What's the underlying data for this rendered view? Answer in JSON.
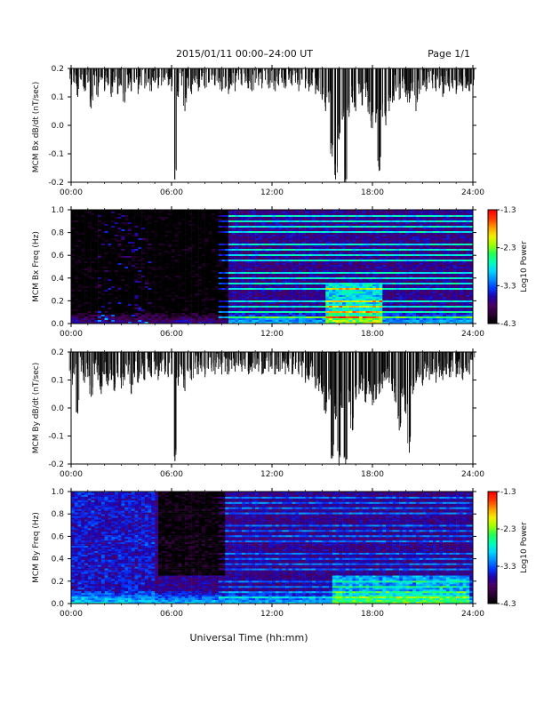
{
  "header": {
    "title": "2015/01/11  00:00–24:00 UT",
    "page": "Page 1/1"
  },
  "footer": {
    "xlabel": "Universal Time (hh:mm)"
  },
  "chart_data": [
    {
      "id": "panel-bx-dbdt",
      "type": "line",
      "ylabel": "MCM Bx dB/dt (nT/sec)",
      "xlim": [
        0,
        24
      ],
      "ylim": [
        -0.2,
        0.2
      ],
      "xtick_labels": [
        "00:00",
        "06:00",
        "12:00",
        "18:00",
        "24:00"
      ],
      "ytick_labels": [
        "0.2",
        "0.1",
        "0.0",
        "-0.1",
        "-0.2"
      ],
      "x_ticks_hours": [
        0,
        6,
        12,
        18,
        24
      ],
      "y_ticks": [
        0.2,
        0.1,
        0.0,
        -0.1,
        -0.2
      ],
      "series": [
        {
          "x": [
            0,
            0.2,
            0.4,
            0.6,
            0.8,
            1.0,
            1.2,
            1.4,
            1.6,
            1.8,
            2.0,
            2.2,
            2.4,
            2.6,
            2.8,
            3.0,
            3.2,
            3.4,
            3.6,
            3.8,
            4.0,
            4.2,
            4.4,
            4.6,
            4.8,
            5.0,
            5.2,
            5.4,
            5.6,
            5.8,
            6.0,
            6.2,
            6.4,
            6.6,
            6.8,
            7.0,
            7.2,
            7.4,
            7.6,
            7.8,
            8.0,
            8.2,
            8.4,
            8.6,
            8.8,
            9.0,
            9.2,
            9.4,
            9.6,
            9.8,
            10.0,
            10.2,
            10.4,
            10.6,
            10.8,
            11.0,
            11.2,
            11.4,
            11.6,
            11.8,
            12.0,
            12.2,
            12.4,
            12.6,
            12.8,
            13.0,
            13.2,
            13.4,
            13.6,
            13.8,
            14.0,
            14.2,
            14.4,
            14.6,
            14.8,
            15.0,
            15.2,
            15.4,
            15.6,
            15.8,
            16.0,
            16.2,
            16.4,
            16.6,
            16.8,
            17.0,
            17.2,
            17.4,
            17.6,
            17.8,
            18.0,
            18.2,
            18.4,
            18.6,
            18.8,
            19.0,
            19.2,
            19.4,
            19.6,
            19.8,
            20.0,
            20.2,
            20.4,
            20.6,
            20.8,
            21.0,
            21.2,
            21.4,
            21.6,
            21.8,
            22.0,
            22.2,
            22.4,
            22.6,
            22.8,
            23.0,
            23.2,
            23.4,
            23.6,
            23.8,
            24.0
          ],
          "y": [
            0.13,
            0.15,
            0.1,
            0.16,
            0.12,
            0.15,
            0.06,
            0.14,
            0.1,
            0.16,
            0.12,
            0.14,
            0.1,
            0.15,
            0.11,
            0.14,
            0.08,
            0.13,
            0.12,
            0.15,
            0.11,
            0.14,
            0.13,
            0.15,
            0.12,
            0.15,
            0.13,
            0.14,
            0.16,
            0.14,
            0.12,
            -0.19,
            0.1,
            0.14,
            0.05,
            0.13,
            0.11,
            0.15,
            0.12,
            0.16,
            0.13,
            0.15,
            0.16,
            0.14,
            0.15,
            0.12,
            0.13,
            0.11,
            0.14,
            0.12,
            0.16,
            0.14,
            0.15,
            0.13,
            0.12,
            0.15,
            0.14,
            0.13,
            0.16,
            0.13,
            0.15,
            0.12,
            0.14,
            0.15,
            0.13,
            0.16,
            0.14,
            0.15,
            0.12,
            0.16,
            0.13,
            0.12,
            0.14,
            0.11,
            0.12,
            0.09,
            0.05,
            0.08,
            -0.11,
            -0.19,
            -0.05,
            0.02,
            -0.2,
            0.03,
            0.08,
            0.05,
            0.11,
            0.07,
            0.1,
            0.04,
            -0.01,
            0.01,
            -0.16,
            0.03,
            0.0,
            0.05,
            0.08,
            0.12,
            0.09,
            0.13,
            0.1,
            0.08,
            0.12,
            0.05,
            0.11,
            0.14,
            0.12,
            0.15,
            0.13,
            0.12,
            0.13,
            0.1,
            0.14,
            0.12,
            0.13,
            0.11,
            0.14,
            0.12,
            0.13,
            0.12,
            0.14
          ]
        }
      ]
    },
    {
      "id": "panel-bx-spectrogram",
      "type": "heatmap",
      "ylabel": "MCM Bx Freq (Hz)",
      "xlim": [
        0,
        24
      ],
      "ylim": [
        0.0,
        1.0
      ],
      "xtick_labels": [
        "00:00",
        "06:00",
        "12:00",
        "18:00",
        "24:00"
      ],
      "ytick_labels": [
        "1.0",
        "0.8",
        "0.6",
        "0.4",
        "0.2",
        "0.0"
      ],
      "x_ticks_hours": [
        0,
        6,
        12,
        18,
        24
      ],
      "y_ticks": [
        1.0,
        0.8,
        0.6,
        0.4,
        0.2,
        0.0
      ],
      "colorbar": {
        "label": "Log10 Power",
        "range": [
          -4.3,
          -1.3
        ],
        "tick_labels": [
          "-1.3",
          "-2.3",
          "-3.3",
          "-4.3"
        ],
        "ticks": [
          -1.3,
          -2.3,
          -3.3,
          -4.3
        ],
        "colormap": [
          "#000000",
          "#2b0033",
          "#4a0062",
          "#2100a8",
          "#0038ff",
          "#008cff",
          "#00d7ff",
          "#00ffb5",
          "#22ff54",
          "#9eff00",
          "#f2f000",
          "#ff9c00",
          "#ff3a00",
          "#ff0000"
        ]
      },
      "notes": {
        "quiet_dark_region_until_hour": 9.5,
        "harmonic_band_start_hour": 8.9,
        "enhanced_low_freq_hour_range": [
          15.2,
          18.6
        ]
      }
    },
    {
      "id": "panel-by-dbdt",
      "type": "line",
      "ylabel": "MCM By dB/dt (nT/sec)",
      "xlim": [
        0,
        24
      ],
      "ylim": [
        -0.2,
        0.2
      ],
      "xtick_labels": [
        "00:00",
        "06:00",
        "12:00",
        "18:00",
        "24:00"
      ],
      "ytick_labels": [
        "0.2",
        "0.1",
        "0.0",
        "-0.1",
        "-0.2"
      ],
      "x_ticks_hours": [
        0,
        6,
        12,
        18,
        24
      ],
      "y_ticks": [
        0.2,
        0.1,
        0.0,
        -0.1,
        -0.2
      ],
      "series": [
        {
          "x": [
            0,
            0.2,
            0.4,
            0.6,
            0.8,
            1.0,
            1.2,
            1.4,
            1.6,
            1.8,
            2.0,
            2.2,
            2.4,
            2.6,
            2.8,
            3.0,
            3.2,
            3.4,
            3.6,
            3.8,
            4.0,
            4.2,
            4.4,
            4.6,
            4.8,
            5.0,
            5.2,
            5.4,
            5.6,
            5.8,
            6.0,
            6.2,
            6.4,
            6.6,
            6.8,
            7.0,
            7.2,
            7.4,
            7.6,
            7.8,
            8.0,
            8.2,
            8.4,
            8.6,
            8.8,
            9.0,
            9.2,
            9.4,
            9.6,
            9.8,
            10.0,
            10.2,
            10.4,
            10.6,
            10.8,
            11.0,
            11.2,
            11.4,
            11.6,
            11.8,
            12.0,
            12.2,
            12.4,
            12.6,
            12.8,
            13.0,
            13.2,
            13.4,
            13.6,
            13.8,
            14.0,
            14.2,
            14.4,
            14.6,
            14.8,
            15.0,
            15.2,
            15.4,
            15.6,
            15.8,
            16.0,
            16.2,
            16.4,
            16.6,
            16.8,
            17.0,
            17.2,
            17.4,
            17.6,
            17.8,
            18.0,
            18.2,
            18.4,
            18.6,
            18.8,
            19.0,
            19.2,
            19.4,
            19.6,
            19.8,
            20.0,
            20.2,
            20.4,
            20.6,
            20.8,
            21.0,
            21.2,
            21.4,
            21.6,
            21.8,
            22.0,
            22.2,
            22.4,
            22.6,
            22.8,
            23.0,
            23.2,
            23.4,
            23.6,
            23.8,
            24.0
          ],
          "y": [
            0.08,
            0.12,
            -0.02,
            0.13,
            0.09,
            0.11,
            0.04,
            0.12,
            0.1,
            0.05,
            0.12,
            0.08,
            0.1,
            0.06,
            0.11,
            0.07,
            0.1,
            0.12,
            0.05,
            0.11,
            0.09,
            0.12,
            0.1,
            0.13,
            0.11,
            0.12,
            0.1,
            0.13,
            0.12,
            0.11,
            0.12,
            -0.19,
            0.08,
            0.12,
            0.06,
            0.13,
            0.1,
            0.14,
            0.12,
            0.13,
            0.11,
            0.14,
            0.13,
            0.12,
            0.14,
            0.12,
            0.13,
            0.12,
            0.14,
            0.13,
            0.15,
            0.13,
            0.14,
            0.12,
            0.13,
            0.14,
            0.13,
            0.12,
            0.14,
            0.13,
            0.14,
            0.12,
            0.13,
            0.14,
            0.12,
            0.13,
            0.12,
            0.14,
            0.12,
            0.11,
            0.09,
            0.1,
            0.11,
            0.07,
            0.06,
            0.05,
            -0.02,
            0.03,
            -0.18,
            -0.04,
            -0.2,
            0.0,
            -0.2,
            0.02,
            -0.08,
            0.03,
            0.05,
            0.06,
            0.02,
            0.05,
            0.01,
            0.03,
            0.05,
            0.07,
            0.1,
            0.09,
            0.06,
            0.02,
            -0.08,
            0.04,
            -0.02,
            -0.16,
            0.05,
            0.09,
            0.11,
            0.08,
            0.11,
            0.1,
            0.12,
            0.09,
            0.11,
            0.1,
            0.12,
            0.11,
            0.13,
            0.11,
            0.12,
            0.1,
            0.13,
            0.12,
            0.13
          ]
        }
      ]
    },
    {
      "id": "panel-by-spectrogram",
      "type": "heatmap",
      "ylabel": "MCM By Freq (Hz)",
      "xlim": [
        0,
        24
      ],
      "ylim": [
        0.0,
        1.0
      ],
      "xtick_labels": [
        "00:00",
        "06:00",
        "12:00",
        "18:00",
        "24:00"
      ],
      "ytick_labels": [
        "1.0",
        "0.8",
        "0.6",
        "0.4",
        "0.2",
        "0.0"
      ],
      "x_ticks_hours": [
        0,
        6,
        12,
        18,
        24
      ],
      "y_ticks": [
        1.0,
        0.8,
        0.6,
        0.4,
        0.2,
        0.0
      ],
      "colorbar": {
        "label": "Log10 Power",
        "range": [
          -4.3,
          -1.3
        ],
        "tick_labels": [
          "-1.3",
          "-2.3",
          "-3.3",
          "-4.3"
        ],
        "ticks": [
          -1.3,
          -2.3,
          -3.3,
          -4.3
        ],
        "colormap": [
          "#000000",
          "#2b0033",
          "#4a0062",
          "#2100a8",
          "#0038ff",
          "#008cff",
          "#00d7ff",
          "#00ffb5",
          "#22ff54",
          "#9eff00",
          "#f2f000",
          "#ff9c00",
          "#ff3a00",
          "#ff0000"
        ]
      },
      "notes": {
        "dark_region_hour_range": [
          5.2,
          9.2
        ],
        "harmonic_band_start_hour": 8.9,
        "enhanced_low_freq_hour_range": [
          15.5,
          23.8
        ]
      }
    }
  ]
}
